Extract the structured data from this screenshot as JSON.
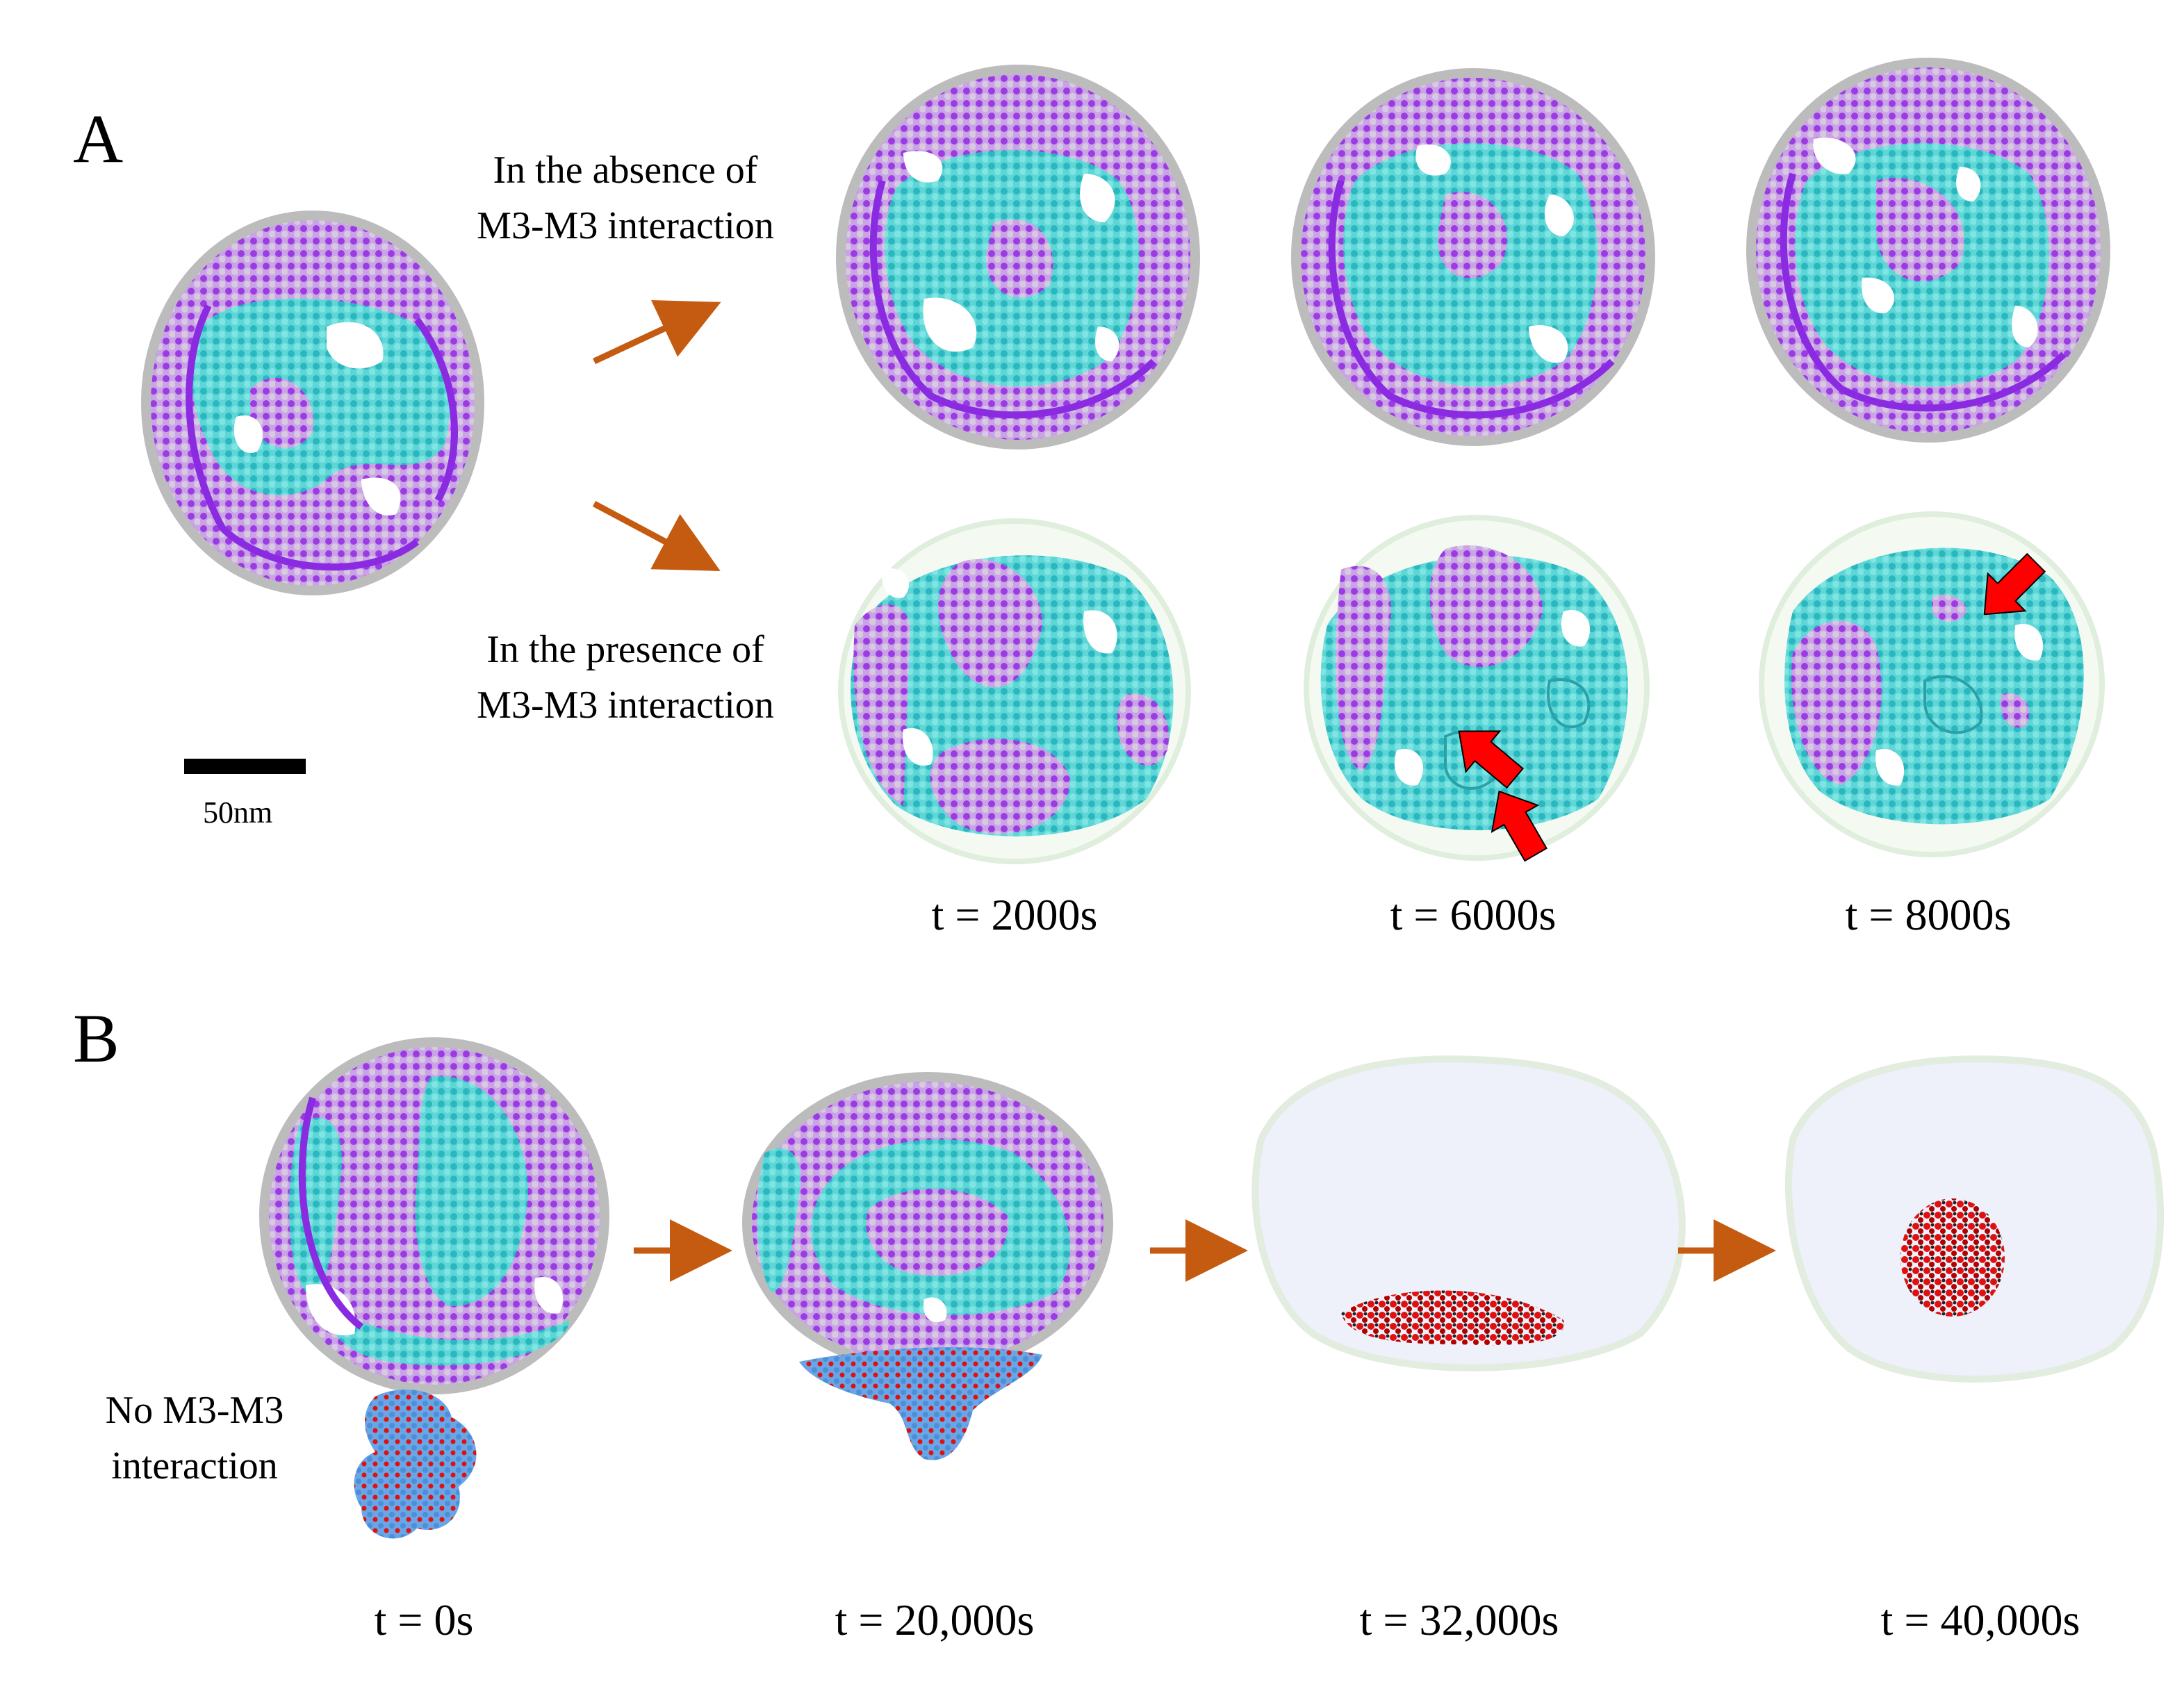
{
  "panel_a": {
    "label": "A",
    "absence_caption": [
      "In the absence of",
      "M3-M3 interaction"
    ],
    "presence_caption": [
      "In the presence of",
      "M3-M3 interaction"
    ],
    "scale_bar_label": "50nm",
    "times": [
      "t = 2000s",
      "t = 6000s",
      "t = 8000s"
    ]
  },
  "panel_b": {
    "label": "B",
    "caption": [
      "No M3-M3",
      "interaction"
    ],
    "times": [
      "t = 0s",
      "t = 20,000s",
      "t = 32,000s",
      "t = 40,000s"
    ]
  },
  "colors": {
    "arrow": "#c55a11",
    "highlight_arrow": "#ff0000",
    "membrane_lipid": "#d8c8d8",
    "purple_phase": "#8a2be2",
    "cyan_phase": "#2ec8c8",
    "complex_blue": "#5a9ee0",
    "complex_red": "#e01010"
  }
}
